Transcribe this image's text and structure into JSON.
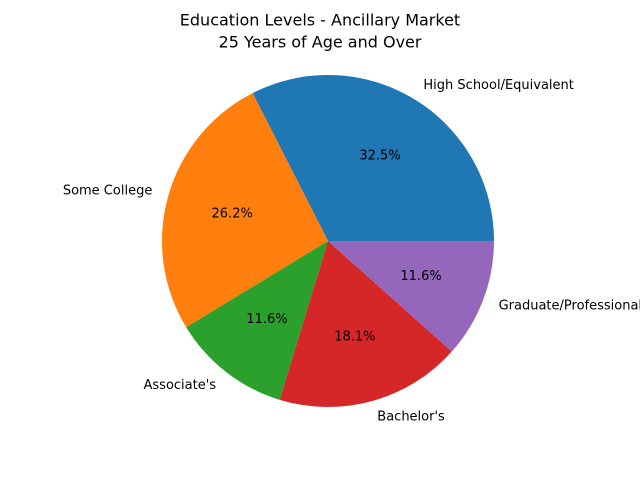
{
  "chart_data": {
    "type": "pie",
    "title": "Education Levels - Ancillary Market",
    "subtitle": "25 Years of Age and Over",
    "categories": [
      "High School/Equivalent",
      "Some College",
      "Associate's",
      "Bachelor's",
      "Graduate/Professional"
    ],
    "values": [
      32.5,
      26.2,
      11.6,
      18.1,
      11.6
    ],
    "value_labels": [
      "32.5%",
      "26.2%",
      "11.6%",
      "18.1%",
      "11.6%"
    ],
    "colors": [
      "#1f77b4",
      "#ff7f0e",
      "#2ca02c",
      "#d62728",
      "#9467bd"
    ]
  }
}
